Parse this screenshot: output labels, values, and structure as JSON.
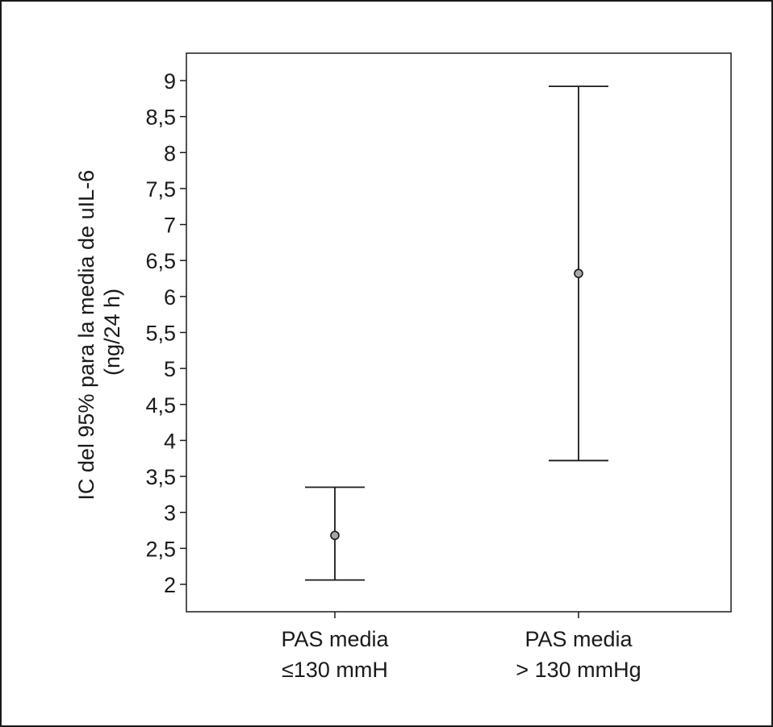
{
  "chart_data": {
    "type": "errorbar",
    "categories": [
      "PAS media\n≤130 mmH",
      "PAS media\n> 130 mmHg"
    ],
    "category_lines": [
      [
        "PAS media",
        "≤130 mmH"
      ],
      [
        "PAS media",
        "> 130 mmHg"
      ]
    ],
    "series": [
      {
        "mean": [
          2.68,
          6.32
        ],
        "lower": [
          2.06,
          3.72
        ],
        "upper": [
          3.35,
          8.92
        ]
      }
    ],
    "ylabel_lines": [
      "IC del 95% para la media de uIL-6",
      "(ng/24 h)"
    ],
    "ylim": [
      2,
      9
    ],
    "yticks": [
      2,
      2.5,
      3,
      3.5,
      4,
      4.5,
      5,
      5.5,
      6,
      6.5,
      7,
      7.5,
      8,
      8.5,
      9
    ],
    "ytick_labels": [
      "2",
      "2,5",
      "3",
      "3,5",
      "4",
      "4,5",
      "5",
      "5,5",
      "6",
      "6,5",
      "7",
      "7,5",
      "8",
      "8,5",
      "9"
    ],
    "grid": false,
    "colors": {
      "line": "#1a1a1a",
      "marker_fill": "#a6a6a6",
      "frame": "#1a1a1a"
    }
  }
}
